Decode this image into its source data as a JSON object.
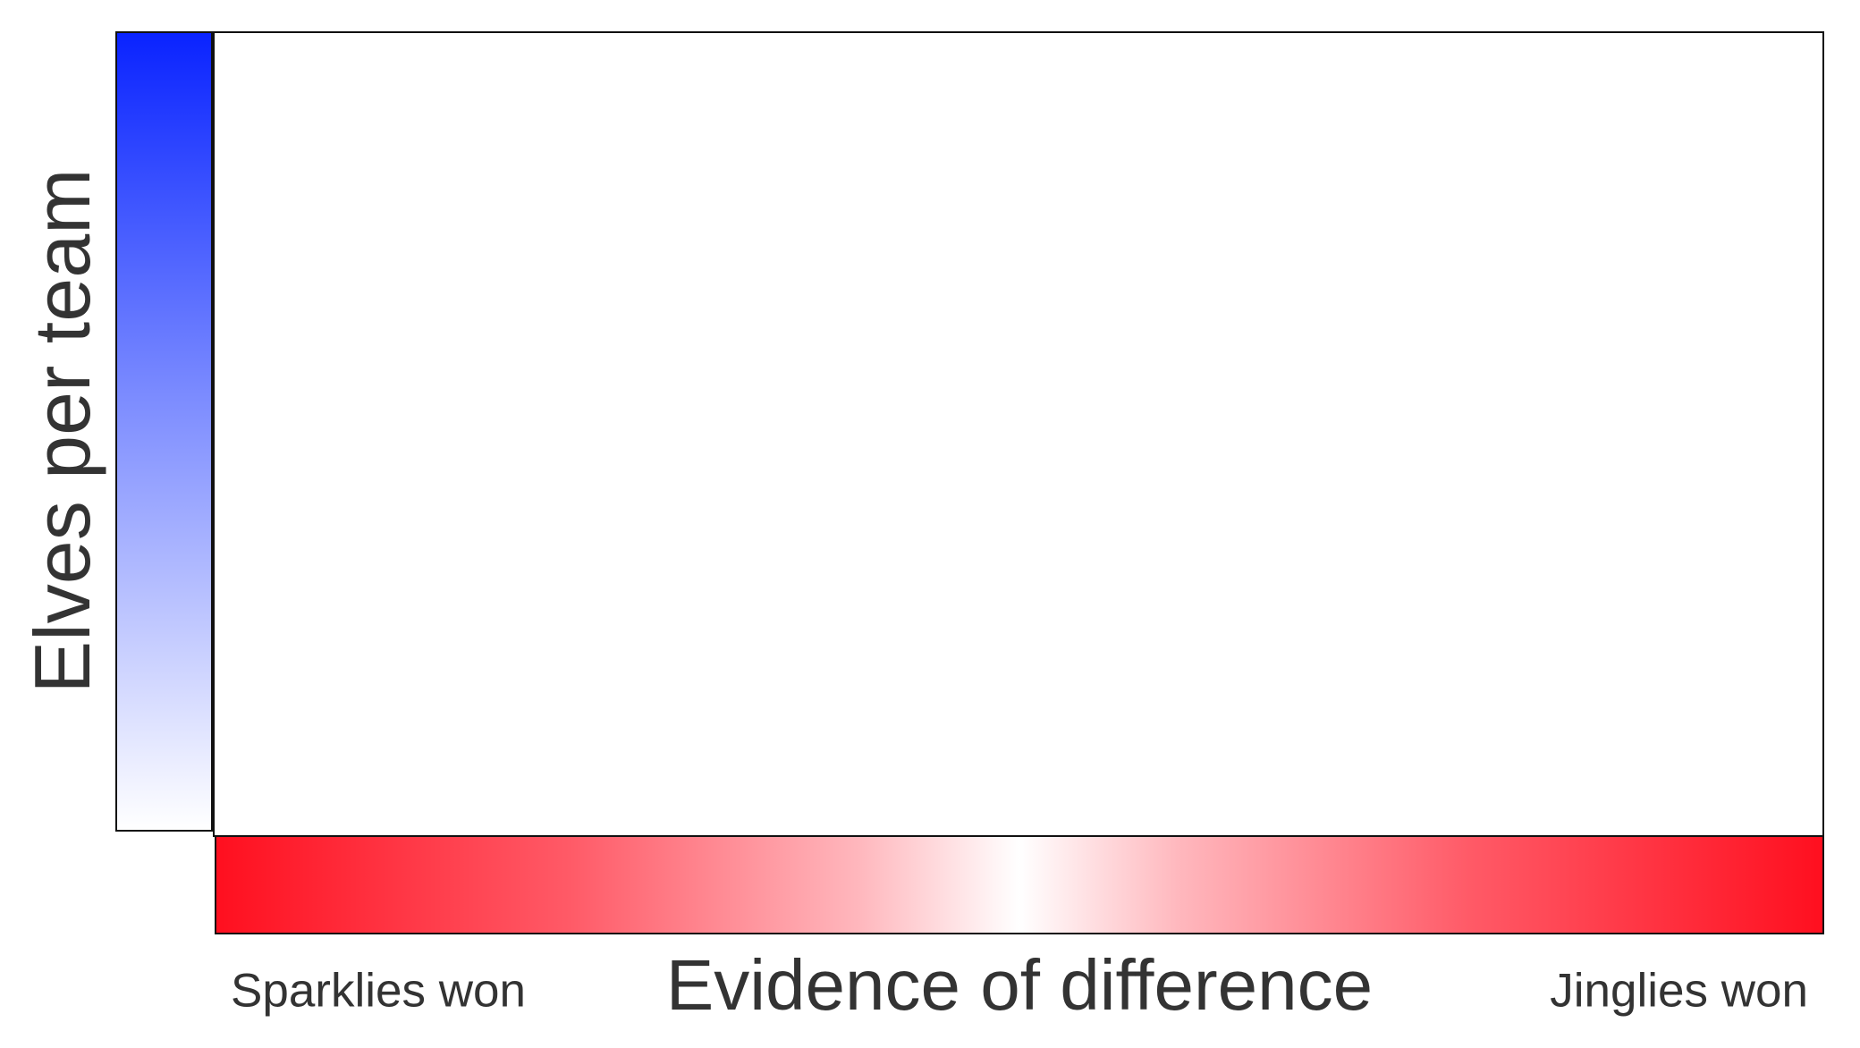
{
  "diagram": {
    "y_axis_label": "Elves per team",
    "x_axis_label": "Evidence of difference",
    "x_left_end_label": "Sparklies won",
    "x_right_end_label": "Jinglies won",
    "colors": {
      "y_gradient_top": "#0a23ff",
      "y_gradient_bottom": "#ffffff",
      "x_gradient_ends": "#ff0f1f",
      "x_gradient_center": "#ffffff",
      "border": "#111111",
      "text": "#333333"
    }
  }
}
